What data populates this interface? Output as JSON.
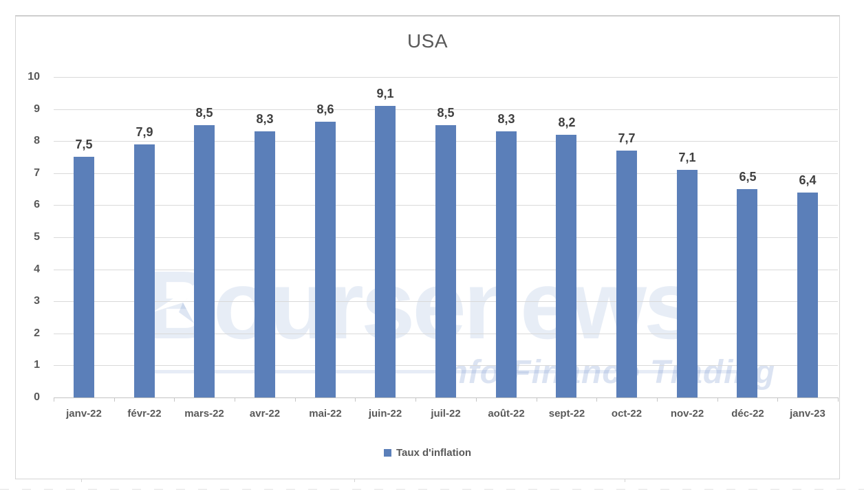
{
  "chart_data": {
    "type": "bar",
    "title": "USA",
    "categories": [
      "janv-22",
      "févr-22",
      "mars-22",
      "avr-22",
      "mai-22",
      "juin-22",
      "juil-22",
      "août-22",
      "sept-22",
      "oct-22",
      "nov-22",
      "déc-22",
      "janv-23"
    ],
    "series": [
      {
        "name": "Taux d'inflation",
        "values": [
          7.5,
          7.9,
          8.5,
          8.3,
          8.6,
          9.1,
          8.5,
          8.3,
          8.2,
          7.7,
          7.1,
          6.5,
          6.4
        ]
      }
    ],
    "data_labels": [
      "7,5",
      "7,9",
      "8,5",
      "8,3",
      "8,6",
      "9,1",
      "8,5",
      "8,3",
      "8,2",
      "7,7",
      "7,1",
      "6,5",
      "6,4"
    ],
    "xlabel": "",
    "ylabel": "",
    "ylim": [
      0,
      10
    ],
    "yticks": [
      0,
      1,
      2,
      3,
      4,
      5,
      6,
      7,
      8,
      9,
      10
    ],
    "grid": true,
    "legend_position": "bottom",
    "bar_color": "#5B7FB9",
    "title_color": "#595959",
    "label_color": "#3F3F3F",
    "axis_text_color": "#595959",
    "gridline_color": "#D9D9D9"
  },
  "watermark": {
    "brand": "Boursenews",
    "tagline": "Info Finance Trading"
  }
}
